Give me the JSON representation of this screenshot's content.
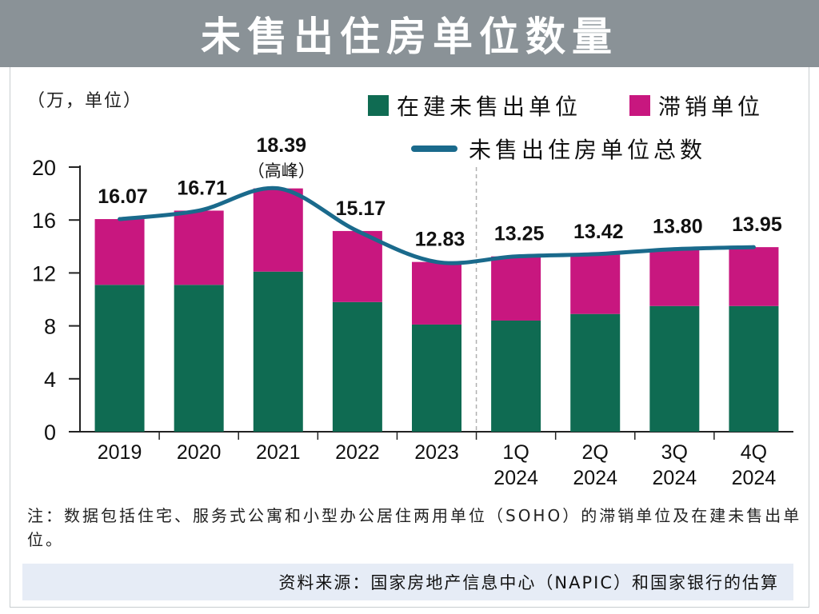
{
  "header": {
    "title": "未售出住房单位数量"
  },
  "unit_label": "（万，单位）",
  "legend": {
    "construction": "在建未售出单位",
    "overhang": "滞销单位",
    "total": "未售出住房单位总数"
  },
  "colors": {
    "construction": "#0f6b52",
    "overhang": "#c8177f",
    "total_line": "#1a6a8c",
    "header_bg": "#8a9297",
    "source_bg": "#e6ecf6"
  },
  "chart_data": {
    "type": "bar",
    "categories": [
      "2019",
      "2020",
      "2021",
      "2022",
      "2023",
      "1Q\n2024",
      "2Q\n2024",
      "3Q\n2024",
      "4Q\n2024"
    ],
    "series": [
      {
        "name": "在建未售出单位",
        "values": [
          11.1,
          11.1,
          12.1,
          9.8,
          8.1,
          8.4,
          8.9,
          9.5,
          9.5
        ]
      },
      {
        "name": "滞销单位",
        "values": [
          4.97,
          5.61,
          6.29,
          5.37,
          4.73,
          4.85,
          4.52,
          4.3,
          4.45
        ]
      }
    ],
    "line": {
      "name": "未售出住房单位总数",
      "values": [
        16.07,
        16.71,
        18.39,
        15.17,
        12.83,
        13.25,
        13.42,
        13.8,
        13.95
      ]
    },
    "data_labels": [
      "16.07",
      "16.71",
      "18.39",
      "15.17",
      "12.83",
      "13.25",
      "13.42",
      "13.80",
      "13.95"
    ],
    "peak_label": "（高峰）",
    "yticks": [
      0,
      4,
      8,
      12,
      16,
      20
    ],
    "ylim": [
      0,
      20
    ],
    "grid": false
  },
  "note": "注：数据包括住宅、服务式公寓和小型办公居住两用单位（SOHO）的滞销单位及在建未售出单位。",
  "source": "资料来源：国家房地产信息中心（NAPIC）和国家银行的估算"
}
